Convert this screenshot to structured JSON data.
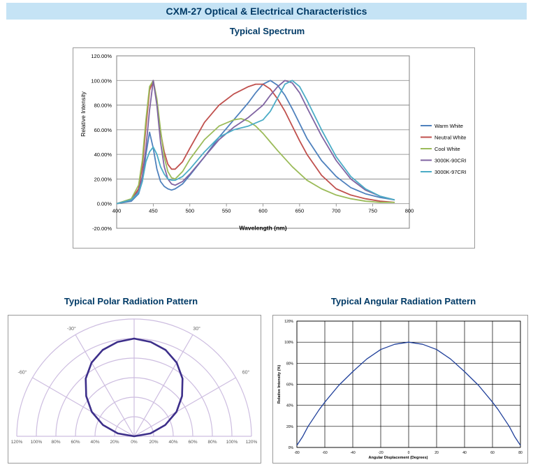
{
  "page": {
    "banner": "CXM-27 Optical & Electrical Characteristics",
    "spectrum_heading": "Typical Spectrum",
    "polar_heading": "Typical Polar Radiation Pattern",
    "angular_heading": "Typical Angular Radiation Pattern"
  },
  "chart_data": [
    {
      "type": "line",
      "title": "",
      "xlabel": "Wavelength (nm)",
      "ylabel": "Relative Intensity",
      "xlim": [
        400,
        800
      ],
      "ylim": [
        -20,
        120
      ],
      "xticks": [
        400,
        450,
        500,
        550,
        600,
        650,
        700,
        750,
        800
      ],
      "yticks": [
        -20,
        0,
        20,
        40,
        60,
        80,
        100,
        120
      ],
      "ytick_labels": [
        "-20.00%",
        "0.00%",
        "20.00%",
        "40.00%",
        "60.00%",
        "80.00%",
        "100.00%",
        "120.00%"
      ],
      "grid": true,
      "legend": "right",
      "series": [
        {
          "name": "Warm White",
          "color": "#4f81bd",
          "x": [
            400,
            420,
            430,
            435,
            440,
            445,
            450,
            455,
            460,
            465,
            470,
            475,
            480,
            490,
            500,
            520,
            540,
            560,
            580,
            590,
            600,
            610,
            620,
            630,
            640,
            650,
            660,
            680,
            700,
            720,
            740,
            760,
            780
          ],
          "y": [
            0,
            2,
            8,
            18,
            40,
            58,
            45,
            28,
            18,
            14,
            12,
            11,
            12,
            16,
            23,
            38,
            54,
            68,
            82,
            90,
            97,
            100,
            96,
            88,
            77,
            65,
            53,
            35,
            22,
            13,
            8,
            5,
            3
          ]
        },
        {
          "name": "Neutral White",
          "color": "#c0504d",
          "x": [
            400,
            420,
            430,
            435,
            440,
            445,
            450,
            455,
            460,
            465,
            470,
            475,
            480,
            490,
            500,
            520,
            540,
            560,
            580,
            590,
            600,
            610,
            620,
            630,
            640,
            650,
            660,
            680,
            700,
            720,
            740,
            760,
            780
          ],
          "y": [
            0,
            3,
            12,
            30,
            62,
            92,
            100,
            82,
            58,
            42,
            32,
            28,
            28,
            34,
            45,
            66,
            80,
            89,
            95,
            97,
            97,
            93,
            85,
            75,
            63,
            51,
            40,
            23,
            12,
            7,
            4,
            2,
            1
          ]
        },
        {
          "name": "Cool White",
          "color": "#9bbb59",
          "x": [
            400,
            420,
            430,
            435,
            440,
            445,
            450,
            455,
            460,
            465,
            470,
            475,
            480,
            490,
            500,
            520,
            540,
            560,
            570,
            580,
            590,
            600,
            610,
            620,
            640,
            660,
            680,
            700,
            720,
            740,
            760,
            780
          ],
          "y": [
            0,
            4,
            15,
            35,
            68,
            95,
            100,
            85,
            60,
            38,
            26,
            21,
            20,
            26,
            36,
            52,
            63,
            68,
            69,
            67,
            63,
            57,
            50,
            43,
            30,
            19,
            12,
            7,
            4,
            2,
            1,
            1
          ]
        },
        {
          "name": "3000K-90CRI",
          "color": "#8064a2",
          "x": [
            400,
            420,
            430,
            435,
            440,
            445,
            450,
            455,
            460,
            465,
            470,
            475,
            480,
            490,
            500,
            520,
            540,
            560,
            580,
            600,
            610,
            620,
            630,
            640,
            650,
            660,
            680,
            700,
            720,
            740,
            760,
            780
          ],
          "y": [
            0,
            3,
            10,
            22,
            45,
            76,
            100,
            80,
            50,
            30,
            20,
            16,
            15,
            18,
            24,
            38,
            52,
            62,
            70,
            80,
            88,
            95,
            100,
            98,
            90,
            78,
            55,
            35,
            20,
            11,
            6,
            3
          ]
        },
        {
          "name": "3000K-97CRI",
          "color": "#4bacc6",
          "x": [
            400,
            420,
            430,
            435,
            440,
            445,
            450,
            455,
            460,
            465,
            470,
            475,
            480,
            490,
            500,
            520,
            540,
            560,
            580,
            600,
            610,
            620,
            630,
            640,
            650,
            660,
            680,
            700,
            720,
            740,
            760,
            780
          ],
          "y": [
            0,
            3,
            9,
            18,
            34,
            42,
            46,
            40,
            30,
            24,
            20,
            19,
            19,
            22,
            28,
            42,
            54,
            60,
            63,
            68,
            75,
            86,
            97,
            100,
            95,
            84,
            60,
            38,
            22,
            12,
            6,
            3
          ]
        }
      ]
    },
    {
      "type": "polar",
      "title": "",
      "angle_labels": [
        "-30°",
        "30°",
        "-60°",
        "60°"
      ],
      "radial_labels": [
        "120%",
        "100%",
        "80%",
        "60%",
        "40%",
        "20%",
        "0%",
        "20%",
        "40%",
        "60%",
        "80%",
        "100%",
        "120%"
      ],
      "grid": true,
      "series": [
        {
          "name": "",
          "color": "#3d2f8a",
          "angle_deg": [
            -90,
            -80,
            -70,
            -60,
            -50,
            -40,
            -30,
            -20,
            -10,
            0,
            10,
            20,
            30,
            40,
            50,
            60,
            70,
            80,
            90
          ],
          "r_percent": [
            0,
            17,
            34,
            50,
            64,
            77,
            87,
            94,
            98,
            100,
            98,
            94,
            87,
            77,
            64,
            50,
            34,
            17,
            0
          ]
        }
      ]
    },
    {
      "type": "line",
      "title": "",
      "xlabel": "Angular Displacement (Degrees)",
      "ylabel": "Relative Intensity (%)",
      "xlim": [
        -80,
        80
      ],
      "ylim": [
        0,
        120
      ],
      "xticks": [
        -80,
        -60,
        -40,
        -20,
        0,
        20,
        40,
        60,
        80
      ],
      "yticks": [
        0,
        20,
        40,
        60,
        80,
        100,
        120
      ],
      "ytick_labels": [
        "0%",
        "20%",
        "40%",
        "60%",
        "80%",
        "100%",
        "120%"
      ],
      "grid": true,
      "series": [
        {
          "name": "",
          "color": "#1f3f9a",
          "x": [
            -80,
            -76,
            -72,
            -68,
            -64,
            -60,
            -50,
            -40,
            -30,
            -20,
            -10,
            0,
            10,
            20,
            30,
            40,
            50,
            60,
            64,
            68,
            72,
            76,
            80
          ],
          "y": [
            2,
            10,
            20,
            28,
            36,
            43,
            59,
            72,
            84,
            93,
            98,
            100,
            98,
            93,
            84,
            72,
            59,
            43,
            36,
            28,
            20,
            10,
            2
          ]
        }
      ]
    }
  ]
}
